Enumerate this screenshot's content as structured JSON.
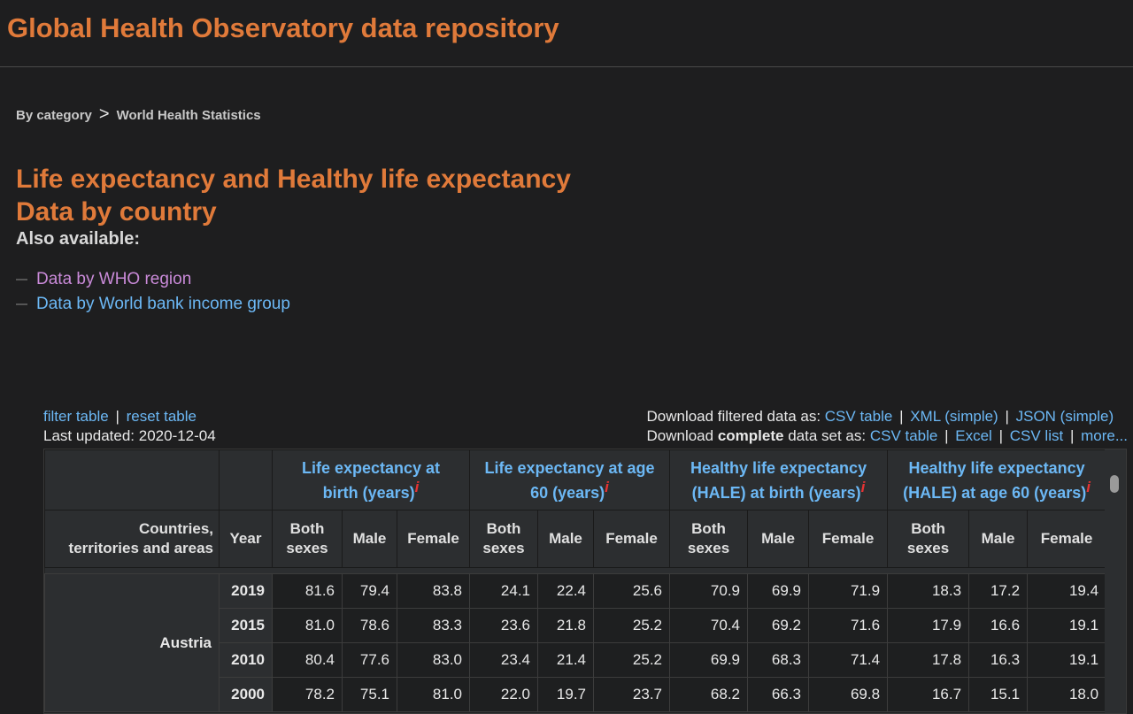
{
  "site": {
    "title": "Global Health Observatory data repository"
  },
  "breadcrumb": {
    "root": "By category",
    "separator": ">",
    "current": "World Health Statistics"
  },
  "page": {
    "title_line1": "Life expectancy and Healthy life expectancy",
    "title_line2": "Data by country"
  },
  "also_available": {
    "label": "Also available:",
    "links": [
      "Data by WHO region",
      "Data by World bank income group"
    ]
  },
  "tools": {
    "filter": "filter table",
    "reset": "reset table",
    "last_updated": "Last updated: 2020-12-04",
    "filtered_label": "Download filtered data as:",
    "filtered_links": [
      "CSV table",
      "XML (simple)",
      "JSON (simple)"
    ],
    "complete_prefix": "Download",
    "complete_bold": "complete",
    "complete_suffix": "data set as:",
    "complete_links": [
      "CSV table",
      "Excel",
      "CSV list",
      "more..."
    ],
    "separator": "|"
  },
  "table": {
    "groups": [
      {
        "line1": "Life expectancy at",
        "line2": "birth (years)"
      },
      {
        "line1": "Life expectancy at age",
        "line2": "60 (years)"
      },
      {
        "line1": "Healthy life expectancy",
        "line2": "(HALE) at birth (years)"
      },
      {
        "line1": "Healthy life expectancy",
        "line2": "(HALE) at age 60 (years)"
      }
    ],
    "info_mark": "i",
    "country_header_1": "Countries,",
    "country_header_2": "territories and areas",
    "year_header": "Year",
    "sub_headers": [
      "Both",
      "sexes",
      "Male",
      "Female"
    ],
    "country": "Austria",
    "rows": [
      {
        "year": "2019",
        "values": [
          "81.6",
          "79.4",
          "83.8",
          "24.1",
          "22.4",
          "25.6",
          "70.9",
          "69.9",
          "71.9",
          "18.3",
          "17.2",
          "19.4"
        ]
      },
      {
        "year": "2015",
        "values": [
          "81.0",
          "78.6",
          "83.3",
          "23.6",
          "21.8",
          "25.2",
          "70.4",
          "69.2",
          "71.6",
          "17.9",
          "16.6",
          "19.1"
        ]
      },
      {
        "year": "2010",
        "values": [
          "80.4",
          "77.6",
          "83.0",
          "23.4",
          "21.4",
          "25.2",
          "69.9",
          "68.3",
          "71.4",
          "17.8",
          "16.3",
          "19.1"
        ]
      },
      {
        "year": "2000",
        "values": [
          "78.2",
          "75.1",
          "81.0",
          "22.0",
          "19.7",
          "23.7",
          "68.2",
          "66.3",
          "69.8",
          "16.7",
          "15.1",
          "18.0"
        ]
      }
    ]
  }
}
